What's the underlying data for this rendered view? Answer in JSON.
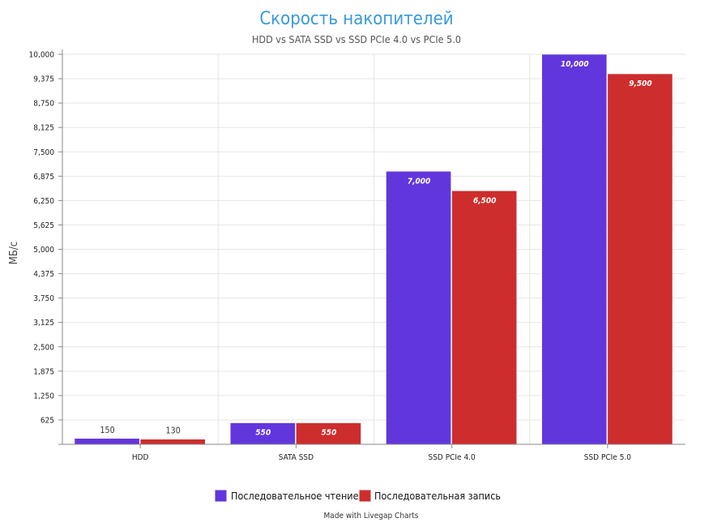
{
  "chart_data": {
    "type": "bar",
    "title": "Скорость накопителей",
    "subtitle": "HDD vs SATA SSD vs SSD PCIe 4.0 vs PCIe 5.0",
    "xlabel": "",
    "ylabel": "МБ/с",
    "categories": [
      "HDD",
      "SATA SSD",
      "SSD PCIe 4.0",
      "SSD PCIe 5.0"
    ],
    "series": [
      {
        "name": "Последовательное чтение",
        "color": "#6236dd",
        "values": [
          150,
          550,
          7000,
          10000
        ],
        "labels": [
          "150",
          "550",
          "7,000",
          "10,000"
        ]
      },
      {
        "name": "Последовательная запись",
        "color": "#cd2d2d",
        "values": [
          130,
          550,
          6500,
          9500
        ],
        "labels": [
          "130",
          "550",
          "6,500",
          "9,500"
        ]
      }
    ],
    "ylim": [
      0,
      10000
    ],
    "yticks": [
      0,
      625,
      1250,
      1875,
      2500,
      3125,
      3750,
      4375,
      5000,
      5625,
      6250,
      6875,
      7500,
      8125,
      8750,
      9375,
      10000
    ],
    "ytick_labels": [
      "",
      "625",
      "1,250",
      "1,875",
      "2,500",
      "3,125",
      "3,750",
      "4,375",
      "5,000",
      "5,625",
      "6,250",
      "6,875",
      "7,500",
      "8,125",
      "8,750",
      "9,375",
      "10,000"
    ],
    "grid": true,
    "legend": "bottom-center"
  },
  "footer": {
    "credit": "Made with Livegap Charts"
  }
}
